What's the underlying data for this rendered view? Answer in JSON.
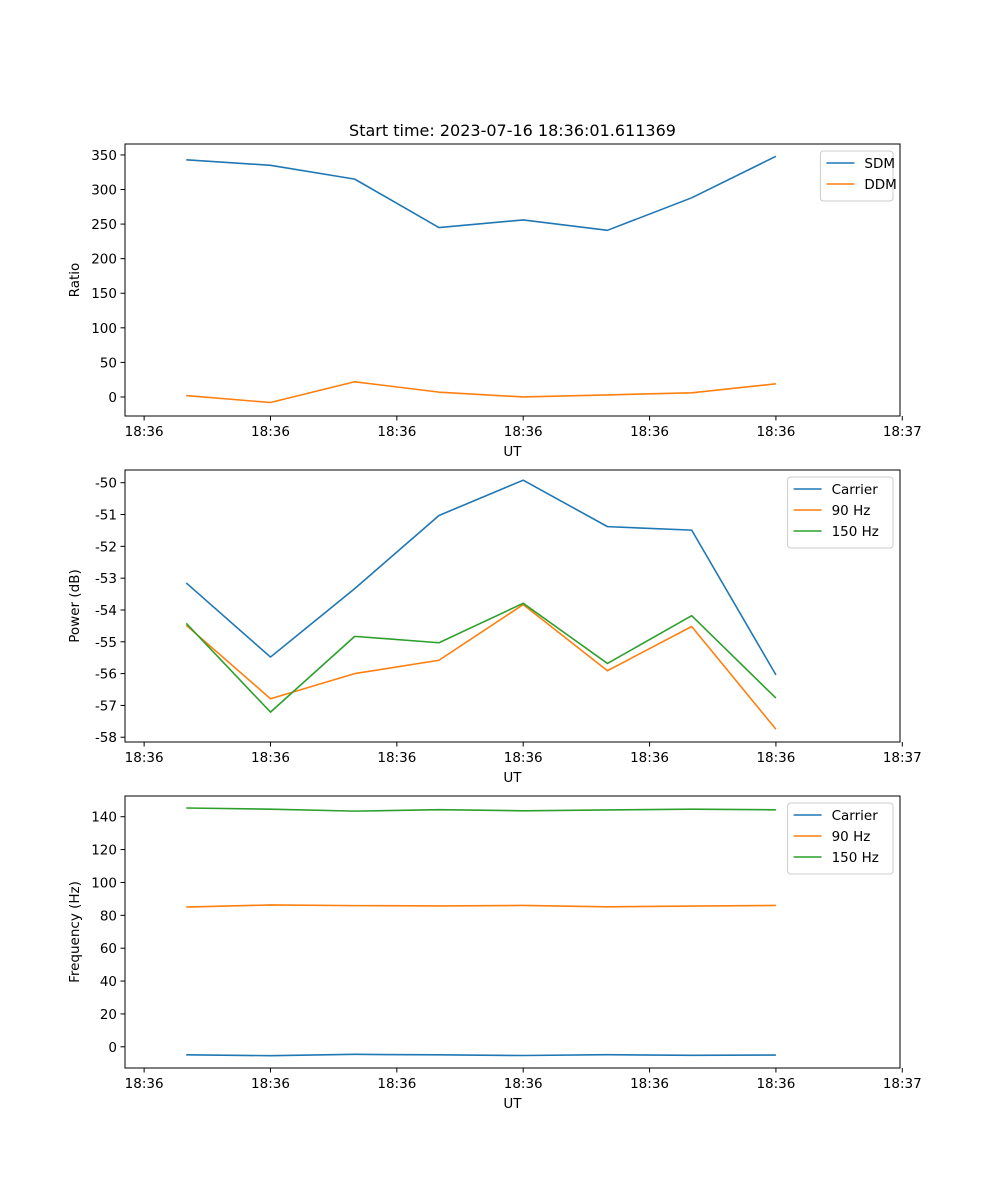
{
  "figure_title": "Start time: 2023-07-16 18:36:01.611369",
  "colors": {
    "blue": "#1f77b4",
    "orange": "#ff7f0e",
    "green": "#2ca02c"
  },
  "chart_data": [
    {
      "type": "line",
      "title": "Start time: 2023-07-16 18:36:01.611369",
      "xlabel": "UT",
      "ylabel": "Ratio",
      "x": [
        0,
        1,
        2,
        3,
        4,
        5,
        6,
        7
      ],
      "xlim": [
        -0.727,
        8.473
      ],
      "x_ticks": [
        -0.5,
        1.0,
        2.5,
        4.0,
        5.5,
        7.0,
        8.5
      ],
      "x_tick_labels": [
        "18:36",
        "18:36",
        "18:36",
        "18:36",
        "18:36",
        "18:36",
        "18:37"
      ],
      "ylim": [
        -27.5,
        365.8
      ],
      "y_ticks": [
        0,
        50,
        100,
        150,
        200,
        250,
        300,
        350
      ],
      "y_tick_labels": [
        "0",
        "50",
        "100",
        "150",
        "200",
        "250",
        "300",
        "350"
      ],
      "legend_position": "top-right",
      "series": [
        {
          "name": "SDM",
          "color": "#1f77b4",
          "values": [
            343,
            335,
            315,
            245,
            256,
            241,
            288,
            348
          ]
        },
        {
          "name": "DDM",
          "color": "#ff7f0e",
          "values": [
            2,
            -8,
            22,
            7,
            0,
            3,
            6,
            19
          ]
        }
      ]
    },
    {
      "type": "line",
      "title": "",
      "xlabel": "UT",
      "ylabel": "Power (dB)",
      "x": [
        0,
        1,
        2,
        3,
        4,
        5,
        6,
        7
      ],
      "xlim": [
        -0.727,
        8.473
      ],
      "x_ticks": [
        -0.5,
        1.0,
        2.5,
        4.0,
        5.5,
        7.0,
        8.5
      ],
      "x_tick_labels": [
        "18:36",
        "18:36",
        "18:36",
        "18:36",
        "18:36",
        "18:36",
        "18:37"
      ],
      "ylim": [
        -58.15,
        -49.6
      ],
      "y_ticks": [
        -58,
        -57,
        -56,
        -55,
        -54,
        -53,
        -52,
        -51,
        -50
      ],
      "y_tick_labels": [
        "-58",
        "-57",
        "-56",
        "-55",
        "-54",
        "-53",
        "-52",
        "-51",
        "-50"
      ],
      "legend_position": "top-right",
      "series": [
        {
          "name": "Carrier",
          "color": "#1f77b4",
          "values": [
            -53.15,
            -55.48,
            -53.33,
            -51.03,
            -49.92,
            -51.38,
            -51.49,
            -56.04
          ]
        },
        {
          "name": "90 Hz",
          "color": "#ff7f0e",
          "values": [
            -54.48,
            -56.79,
            -56.0,
            -55.58,
            -53.83,
            -55.91,
            -54.52,
            -57.75
          ]
        },
        {
          "name": "150 Hz",
          "color": "#2ca02c",
          "values": [
            -54.42,
            -57.21,
            -54.83,
            -55.03,
            -53.79,
            -55.68,
            -54.18,
            -56.77
          ]
        }
      ]
    },
    {
      "type": "line",
      "title": "",
      "xlabel": "UT",
      "ylabel": "Frequency (Hz)",
      "x": [
        0,
        1,
        2,
        3,
        4,
        5,
        6,
        7
      ],
      "xlim": [
        -0.727,
        8.473
      ],
      "x_ticks": [
        -0.5,
        1.0,
        2.5,
        4.0,
        5.5,
        7.0,
        8.5
      ],
      "x_tick_labels": [
        "18:36",
        "18:36",
        "18:36",
        "18:36",
        "18:36",
        "18:36",
        "18:37"
      ],
      "ylim": [
        -12.9,
        152.6
      ],
      "y_ticks": [
        0,
        20,
        40,
        60,
        80,
        100,
        120,
        140
      ],
      "y_tick_labels": [
        "0",
        "20",
        "40",
        "60",
        "80",
        "100",
        "120",
        "140"
      ],
      "legend_position": "top-right",
      "series": [
        {
          "name": "Carrier",
          "color": "#1f77b4",
          "values": [
            -4.9,
            -5.4,
            -4.6,
            -4.9,
            -5.3,
            -4.8,
            -5.2,
            -5.0
          ]
        },
        {
          "name": "90 Hz",
          "color": "#ff7f0e",
          "values": [
            85.0,
            86.3,
            85.9,
            85.7,
            86.0,
            85.2,
            85.6,
            86.0
          ]
        },
        {
          "name": "150 Hz",
          "color": "#2ca02c",
          "values": [
            145.3,
            144.6,
            143.4,
            144.3,
            143.6,
            144.1,
            144.6,
            144.2
          ]
        }
      ]
    }
  ]
}
